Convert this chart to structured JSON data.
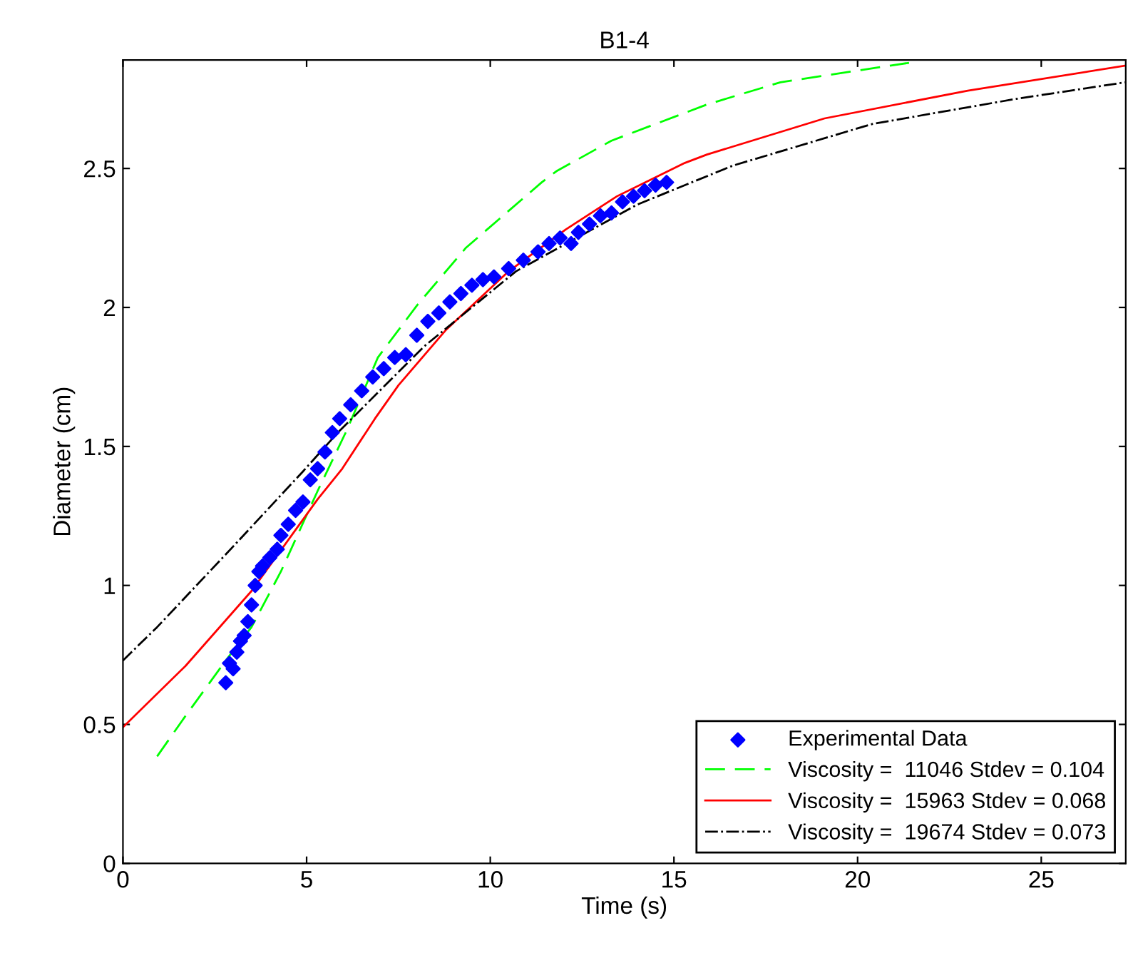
{
  "chart_data": {
    "type": "line",
    "title": "B1-4",
    "xlabel": "Time (s)",
    "ylabel": "Diameter (cm)",
    "xlim": [
      0,
      27.3
    ],
    "ylim": [
      0,
      2.89
    ],
    "xticks": [
      0,
      5,
      10,
      15,
      20,
      25
    ],
    "yticks": [
      0,
      0.5,
      1,
      1.5,
      2,
      2.5
    ],
    "grid": false,
    "legend": "bottom right",
    "series": [
      {
        "name": "Experimental Data",
        "type": "scatter",
        "marker": "diamond",
        "color": "#0000ff",
        "x": [
          2.8,
          2.9,
          3.0,
          3.1,
          3.2,
          3.3,
          3.4,
          3.5,
          3.6,
          3.7,
          3.8,
          4.0,
          4.2,
          4.3,
          4.5,
          4.7,
          4.9,
          5.1,
          5.3,
          5.5,
          5.7,
          5.9,
          6.2,
          6.5,
          6.8,
          7.1,
          7.4,
          7.7,
          8.0,
          8.3,
          8.6,
          8.9,
          9.2,
          9.5,
          9.8,
          10.1,
          10.5,
          10.9,
          11.3,
          11.6,
          11.9,
          12.2,
          12.4,
          12.7,
          13.0,
          13.3,
          13.6,
          13.9,
          14.2,
          14.5,
          14.8
        ],
        "values": [
          0.65,
          0.72,
          0.7,
          0.76,
          0.8,
          0.82,
          0.87,
          0.93,
          1.0,
          1.05,
          1.07,
          1.1,
          1.13,
          1.18,
          1.22,
          1.27,
          1.3,
          1.38,
          1.42,
          1.48,
          1.55,
          1.6,
          1.65,
          1.7,
          1.75,
          1.78,
          1.82,
          1.83,
          1.9,
          1.95,
          1.98,
          2.02,
          2.05,
          2.08,
          2.1,
          2.11,
          2.14,
          2.17,
          2.2,
          2.23,
          2.25,
          2.23,
          2.27,
          2.3,
          2.33,
          2.34,
          2.38,
          2.4,
          2.42,
          2.44,
          2.45
        ]
      },
      {
        "name": "Viscosity =  11046 Stdev = 0.104",
        "line_style": "dashed",
        "color": "#00ff00",
        "x": [
          0.93,
          1.7,
          2.8,
          3.5,
          4.3,
          5.3,
          6.1,
          6.94,
          8.02,
          9.34,
          11.4,
          11.8,
          13.3,
          15.9,
          17.9,
          21.4
        ],
        "values": [
          0.385,
          0.53,
          0.73,
          0.85,
          1.05,
          1.34,
          1.56,
          1.82,
          2.01,
          2.215,
          2.45,
          2.49,
          2.6,
          2.73,
          2.81,
          2.88
        ]
      },
      {
        "name": "Viscosity =  15963 Stdev = 0.068",
        "line_style": "solid",
        "color": "#ff0000",
        "x": [
          0,
          1.7,
          3.5,
          5.3,
          5.97,
          6.86,
          7.5,
          8.8,
          10.5,
          12.05,
          13.45,
          15.3,
          15.9,
          19.1,
          23.0,
          27.3
        ],
        "values": [
          0.49,
          0.71,
          0.98,
          1.31,
          1.42,
          1.6,
          1.72,
          1.92,
          2.13,
          2.28,
          2.4,
          2.52,
          2.55,
          2.68,
          2.78,
          2.87
        ]
      },
      {
        "name": "Viscosity =  19674 Stdev = 0.073",
        "line_style": "dashdot",
        "color": "#000000",
        "x": [
          0,
          0.93,
          3.0,
          4.9,
          5.85,
          8.2,
          10.7,
          14.0,
          16.6,
          20.4,
          24.3,
          27.3
        ],
        "values": [
          0.73,
          0.85,
          1.14,
          1.41,
          1.55,
          1.86,
          2.13,
          2.37,
          2.51,
          2.66,
          2.75,
          2.81
        ]
      }
    ]
  }
}
